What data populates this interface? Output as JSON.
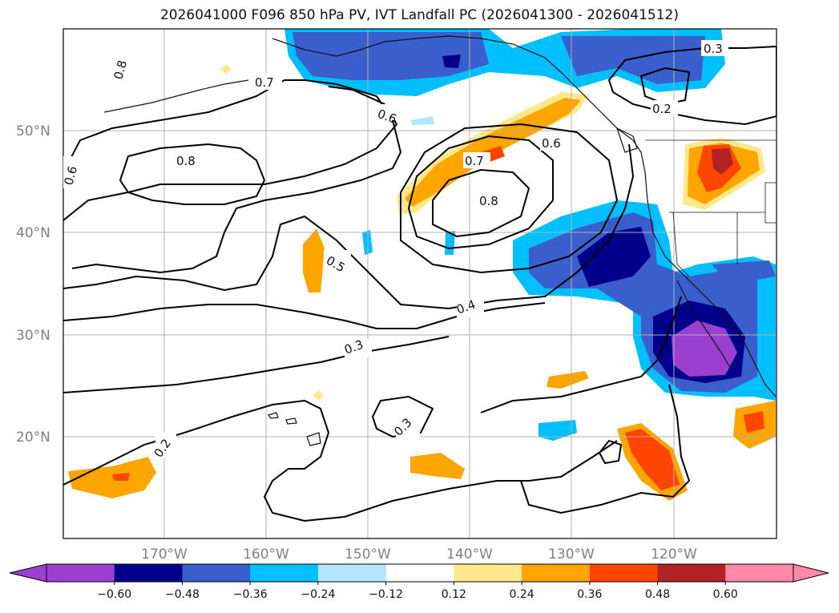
{
  "title": "2026041000 F096 850 hPa PV, IVT Landfall PC (2026041300 - 2026041512)",
  "lat_labels": [
    "50°N",
    "40°N",
    "30°N",
    "20°N"
  ],
  "lon_labels": [
    "170°W",
    "160°W",
    "150°W",
    "140°W",
    "130°W",
    "120°W"
  ],
  "colorbar": {
    "ticks": [
      "−0.60",
      "−0.48",
      "−0.36",
      "−0.24",
      "−0.12",
      "0.12",
      "0.24",
      "0.36",
      "0.48",
      "0.60"
    ],
    "colors": [
      "#9b3fd1",
      "#00008b",
      "#3a5fcd",
      "#00bfff",
      "#b3e5fc",
      "#ffffff",
      "#ffe88a",
      "#ffa500",
      "#ff4500",
      "#b22222",
      "#ff88aa",
      "#ff88aa"
    ]
  },
  "contour_labels": {
    "c1": "0.8",
    "c2": "0.7",
    "c3": "0.6",
    "c4": "0.3",
    "c5": "0.2",
    "c6": "0.8",
    "c7": "0.6",
    "c8": "0.7",
    "c9": "0.8",
    "c10": "0.6",
    "c11": "0.5",
    "c12": "0.4",
    "c13": "0.3",
    "c14": "0.3",
    "c15": "0.2"
  },
  "colors": {
    "purple": "#9b3fd1",
    "navy": "#00008b",
    "royal": "#3a5fcd",
    "sky": "#00bfff",
    "pale_blue": "#b3e5fc",
    "yellow": "#ffe88a",
    "orange": "#ffa500",
    "red_orange": "#ff4500",
    "dark_red": "#b22222",
    "pink": "#ff88aa"
  }
}
